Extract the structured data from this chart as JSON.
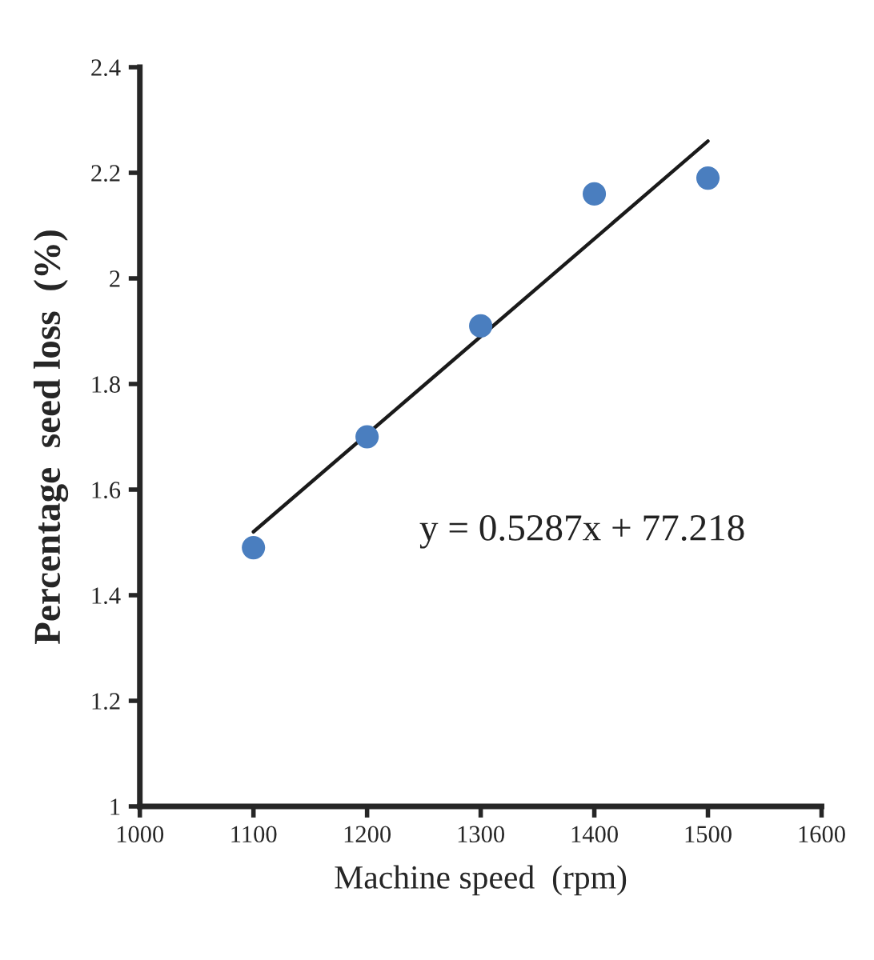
{
  "chart_data": {
    "type": "scatter",
    "xlabel": "Machine speed  (rpm)",
    "ylabel": "Percentage  seed loss  (%)",
    "x": [
      1100,
      1200,
      1300,
      1400,
      1500
    ],
    "series": [
      {
        "color": "#4a7ebf",
        "marker": "circle",
        "values": [
          1.49,
          1.7,
          1.91,
          2.16,
          2.19
        ]
      },
      {
        "type": "line",
        "color": "#1a1a1a",
        "marker": "none",
        "line_style": "solid",
        "x": [
          1100,
          1500
        ],
        "values": [
          1.52,
          2.26
        ]
      }
    ],
    "xlim": [
      1000,
      1600
    ],
    "xticks": [
      1000,
      1100,
      1200,
      1300,
      1400,
      1500,
      1600
    ],
    "ylim": [
      1,
      2.4
    ],
    "yticks": [
      1,
      1.2,
      1.4,
      1.6,
      1.8,
      2,
      2.2,
      2.4
    ],
    "annotations": [
      "y = 0.5287x + 77.218"
    ],
    "grid": false,
    "legend": false
  }
}
